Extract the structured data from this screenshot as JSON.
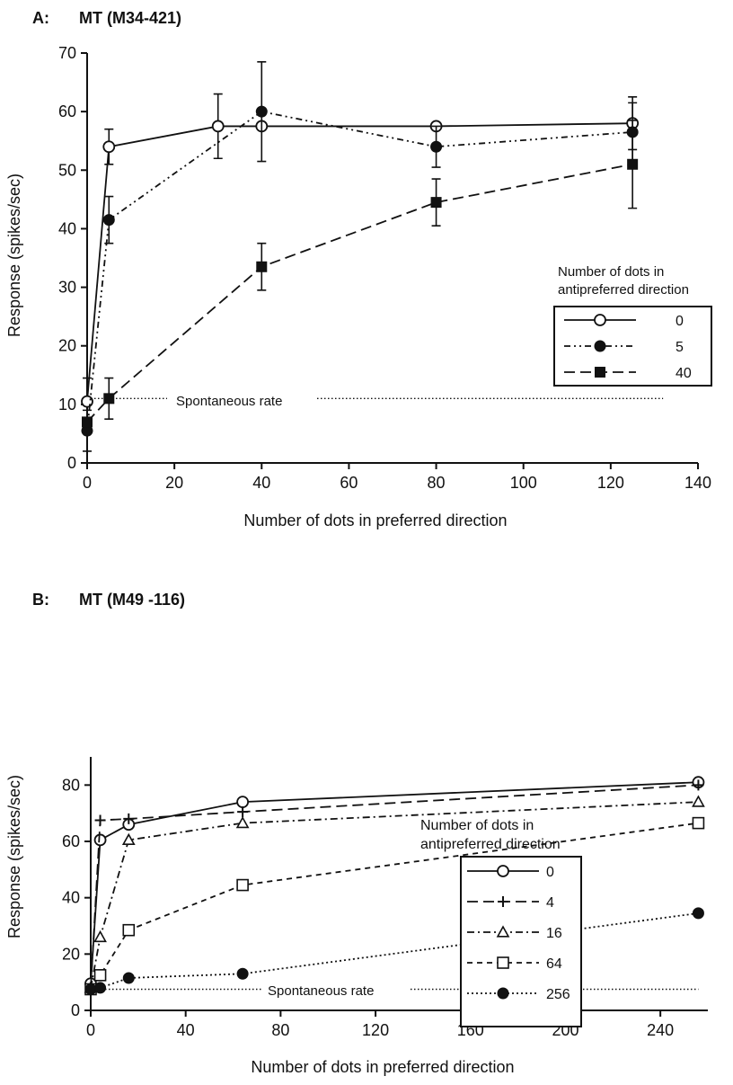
{
  "chart_data": [
    {
      "type": "line",
      "panel_label": "A:",
      "title": "MT (M34-421)",
      "xlabel": "Number of dots in preferred direction",
      "ylabel": "Response (spikes/sec)",
      "xlim": [
        0,
        140
      ],
      "ylim": [
        0,
        70
      ],
      "xticks": [
        0,
        20,
        40,
        60,
        80,
        100,
        120,
        140
      ],
      "yticks": [
        0,
        10,
        20,
        30,
        40,
        50,
        60,
        70
      ],
      "legend_title_line1": "Number of dots in",
      "legend_title_line2": "antipreferred direction",
      "legend_position": "right",
      "grid": false,
      "reference_line": {
        "label": "Spontaneous rate",
        "y": 11,
        "x_range": [
          0,
          132
        ]
      },
      "series": [
        {
          "name": "0",
          "marker": "open-circle",
          "dash": "none",
          "x": [
            0,
            5,
            30,
            40,
            80,
            125
          ],
          "y": [
            10.5,
            54,
            57.5,
            57.5,
            57.5,
            58
          ],
          "err": [
            4,
            3,
            5.5,
            0,
            0,
            4.5
          ]
        },
        {
          "name": "5",
          "marker": "filled-circle",
          "dash": "dashdotdot",
          "x": [
            0,
            5,
            40,
            80,
            125
          ],
          "y": [
            5.5,
            41.5,
            60,
            54,
            56.5
          ],
          "err": [
            3.5,
            4,
            8.5,
            3.5,
            5
          ]
        },
        {
          "name": "40",
          "marker": "filled-square",
          "dash": "dashed",
          "x": [
            0,
            5,
            40,
            80,
            125
          ],
          "y": [
            7,
            11,
            33.5,
            44.5,
            51
          ],
          "err": [
            0,
            3.5,
            4,
            4,
            7.5
          ]
        }
      ]
    },
    {
      "type": "line",
      "panel_label": "B:",
      "title": "MT (M49 -116)",
      "xlabel": "Number of dots in preferred direction",
      "ylabel": "Response (spikes/sec)",
      "xlim": [
        0,
        260
      ],
      "ylim": [
        0,
        90
      ],
      "xticks": [
        0,
        40,
        80,
        120,
        160,
        200,
        240
      ],
      "yticks": [
        0,
        20,
        40,
        60,
        80
      ],
      "legend_title_line1": "Number of dots in",
      "legend_title_line2": "antipreferred direction",
      "legend_position": "right",
      "grid": false,
      "reference_line": {
        "label": "Spontaneous rate",
        "y": 7.5,
        "x_range": [
          0,
          256
        ]
      },
      "series": [
        {
          "name": "0",
          "marker": "open-circle",
          "dash": "none",
          "x": [
            0,
            4,
            16,
            64,
            256
          ],
          "y": [
            9.5,
            60.5,
            66,
            74,
            81
          ]
        },
        {
          "name": "4",
          "marker": "plus",
          "dash": "dashed",
          "x": [
            0,
            4,
            16,
            64,
            256
          ],
          "y": [
            8,
            67.5,
            68,
            70.5,
            80
          ]
        },
        {
          "name": "16",
          "marker": "open-triangle",
          "dash": "dashdot",
          "x": [
            0,
            4,
            16,
            64,
            256
          ],
          "y": [
            8,
            26,
            60.5,
            66.5,
            74
          ]
        },
        {
          "name": "64",
          "marker": "open-square",
          "dash": "dashed-short",
          "x": [
            0,
            4,
            16,
            64,
            256
          ],
          "y": [
            7.5,
            12.5,
            28.5,
            44.5,
            66.5
          ]
        },
        {
          "name": "256",
          "marker": "filled-circle",
          "dash": "dotted",
          "x": [
            0,
            4,
            16,
            64,
            256
          ],
          "y": [
            7.5,
            8,
            11.5,
            13,
            34.5
          ]
        }
      ]
    }
  ]
}
